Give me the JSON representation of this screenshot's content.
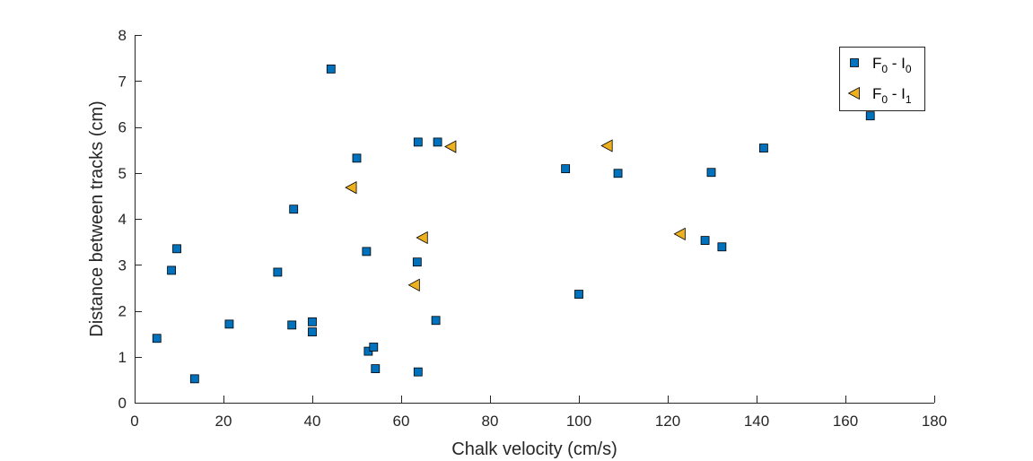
{
  "chart_data": {
    "type": "scatter",
    "xlabel": "Chalk velocity (cm/s)",
    "ylabel": "Distance between tracks (cm)",
    "xlim": [
      0,
      180
    ],
    "ylim": [
      0,
      8
    ],
    "xticks": [
      0,
      20,
      40,
      60,
      80,
      100,
      120,
      140,
      160,
      180
    ],
    "yticks": [
      0,
      1,
      2,
      3,
      4,
      5,
      6,
      7,
      8
    ],
    "grid": false,
    "legend_position": "top-right",
    "series": [
      {
        "name": "F0 - I0",
        "legend_main": [
          "F",
          " - I"
        ],
        "legend_sub": [
          "0",
          "0"
        ],
        "marker": "square",
        "color": "#0072BD",
        "points": [
          [
            5,
            1.4
          ],
          [
            8.3,
            2.88
          ],
          [
            9.5,
            3.35
          ],
          [
            13.5,
            0.52
          ],
          [
            21.3,
            1.71
          ],
          [
            32.2,
            2.84
          ],
          [
            35.4,
            1.69
          ],
          [
            35.8,
            4.21
          ],
          [
            40,
            1.76
          ],
          [
            40,
            1.54
          ],
          [
            44.2,
            7.26
          ],
          [
            50,
            5.32
          ],
          [
            52.2,
            3.29
          ],
          [
            52.6,
            1.12
          ],
          [
            53.8,
            1.21
          ],
          [
            54.2,
            0.74
          ],
          [
            63.6,
            3.06
          ],
          [
            63.8,
            5.67
          ],
          [
            63.8,
            0.67
          ],
          [
            67.8,
            1.79
          ],
          [
            68.2,
            5.67
          ],
          [
            97,
            5.09
          ],
          [
            100,
            2.36
          ],
          [
            108.8,
            4.99
          ],
          [
            128.4,
            3.53
          ],
          [
            129.8,
            5.01
          ],
          [
            132.2,
            3.39
          ],
          [
            141.6,
            5.54
          ],
          [
            165.6,
            6.24
          ]
        ]
      },
      {
        "name": "F0 - I1",
        "legend_main": [
          "F",
          " - I"
        ],
        "legend_sub": [
          "0",
          "1"
        ],
        "marker": "triangle-left",
        "color": "#EDB120",
        "points": [
          [
            48.8,
            4.68
          ],
          [
            63,
            2.56
          ],
          [
            64.8,
            3.59
          ],
          [
            71.2,
            5.57
          ],
          [
            106.4,
            5.59
          ],
          [
            122.8,
            3.67
          ]
        ]
      }
    ]
  }
}
